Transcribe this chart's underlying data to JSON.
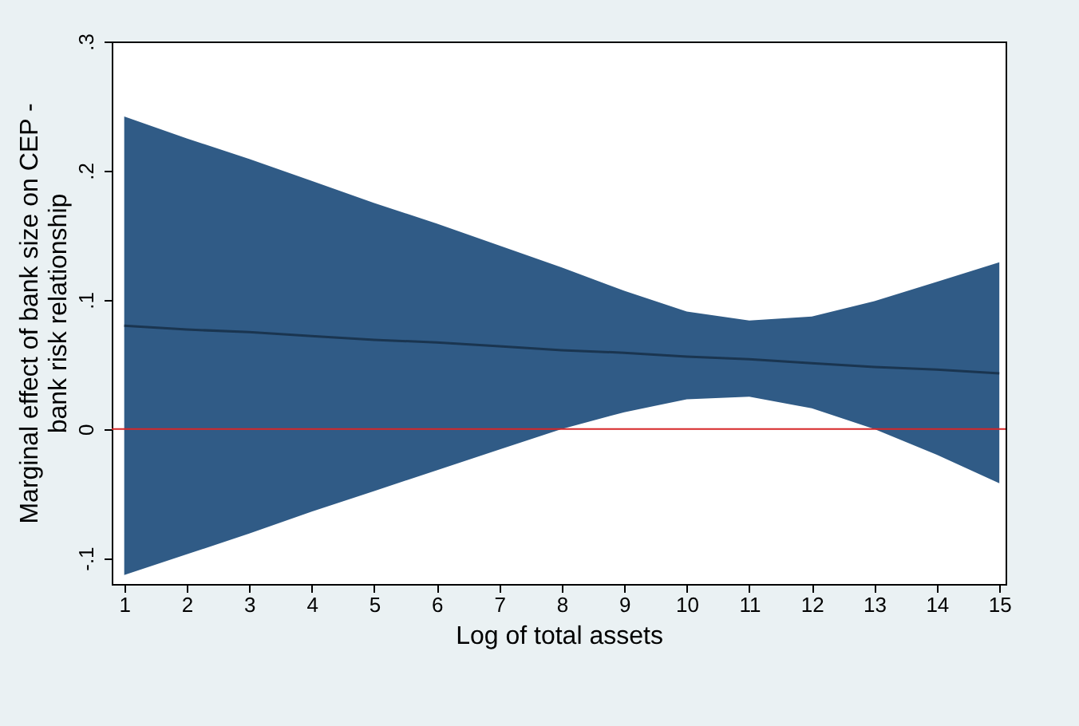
{
  "chart_data": {
    "type": "line",
    "xlabel": "Log of total assets",
    "ylabel": "Marginal effect of bank size on CEP - bank risk relationship",
    "x": [
      1,
      2,
      3,
      4,
      5,
      6,
      7,
      8,
      9,
      10,
      11,
      12,
      13,
      14,
      15
    ],
    "series": [
      {
        "color": "#1a3550",
        "values": [
          0.08,
          0.077,
          0.075,
          0.072,
          0.069,
          0.067,
          0.064,
          0.061,
          0.059,
          0.056,
          0.054,
          0.051,
          0.048,
          0.046,
          0.043
        ],
        "lower": [
          -0.113,
          -0.097,
          -0.081,
          -0.064,
          -0.048,
          -0.032,
          -0.016,
          0,
          0.013,
          0.023,
          0.025,
          0.016,
          0,
          -0.02,
          -0.042
        ],
        "upper": [
          0.242,
          0.225,
          0.209,
          0.192,
          0.175,
          0.159,
          0.142,
          0.125,
          0.107,
          0.091,
          0.084,
          0.087,
          0.099,
          0.114,
          0.129
        ]
      }
    ],
    "xlim": [
      0.8,
      15.1
    ],
    "xticks": [
      1,
      2,
      3,
      4,
      5,
      6,
      7,
      8,
      9,
      10,
      11,
      12,
      13,
      14,
      15
    ],
    "ylim": [
      -0.12,
      0.3
    ],
    "yticks": [
      {
        "value": -0.1,
        "label": "-.1"
      },
      0,
      {
        "value": 0.1,
        "label": ".1"
      },
      {
        "value": 0.2,
        "label": ".2"
      },
      {
        "value": 0.3,
        "label": ".3"
      }
    ],
    "ref_lines": [
      {
        "axis": "y",
        "value": 0,
        "color": "#d62728"
      }
    ],
    "grid": false
  }
}
